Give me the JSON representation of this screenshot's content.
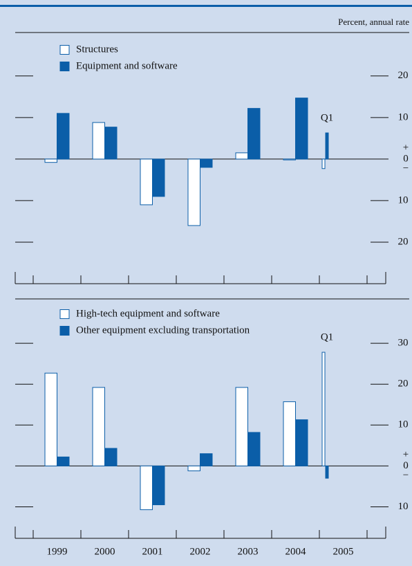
{
  "unit_label": "Percent, annual rate",
  "chart_data": [
    {
      "type": "bar",
      "categories": [
        null,
        null,
        null,
        null,
        null,
        null,
        null
      ],
      "series": [
        {
          "name": "Structures",
          "color": "#ffffff",
          "values": [
            -0.8,
            8.8,
            -11,
            -16,
            1.5,
            -0.2,
            -2.3
          ]
        },
        {
          "name": "Equipment and software",
          "color": "#0b5ea8",
          "values": [
            11,
            7.7,
            -9,
            -2,
            12.2,
            14.7,
            6.3
          ]
        }
      ],
      "edgecolor": "#0b5ea8",
      "annotation": "Q1",
      "ylim": [
        -30,
        23.3
      ],
      "yticks": [
        {
          "value": -20,
          "label": "20"
        },
        {
          "value": -10,
          "label": "10"
        },
        0,
        10,
        20
      ],
      "zero_signs": [
        "+",
        "−"
      ]
    },
    {
      "type": "bar",
      "categories": [
        "1999",
        "2000",
        "2001",
        "2002",
        "2003",
        "2004",
        "2005"
      ],
      "series": [
        {
          "name": "High-tech equipment and software",
          "color": "#ffffff",
          "values": [
            22.7,
            19.2,
            -10.7,
            -1.2,
            19.2,
            15.7,
            27.8
          ]
        },
        {
          "name": "Other equipment excluding transportation",
          "color": "#0b5ea8",
          "values": [
            2.2,
            4.3,
            -9.5,
            3,
            8.2,
            11.3,
            -3
          ]
        }
      ],
      "edgecolor": "#0b5ea8",
      "annotation": "Q1",
      "ylim": [
        -17.7,
        37.8
      ],
      "yticks": [
        {
          "value": -10,
          "label": "10"
        },
        0,
        10,
        20,
        30
      ],
      "zero_signs": [
        "+",
        "−"
      ]
    }
  ]
}
